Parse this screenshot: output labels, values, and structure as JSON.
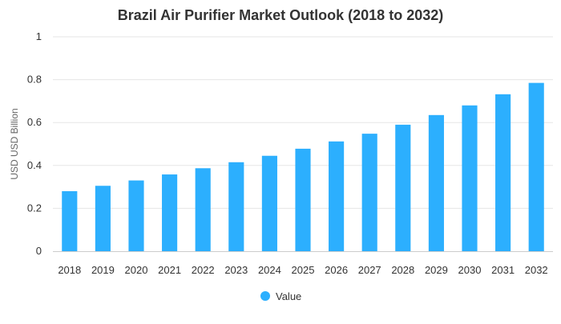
{
  "chart_data": {
    "type": "bar",
    "title": "Brazil Air Purifier Market Outlook (2018 to 2032)",
    "xlabel": "",
    "ylabel": "USD USD Billion",
    "categories": [
      "2018",
      "2019",
      "2020",
      "2021",
      "2022",
      "2023",
      "2024",
      "2025",
      "2026",
      "2027",
      "2028",
      "2029",
      "2030",
      "2031",
      "2032"
    ],
    "series": [
      {
        "name": "Value",
        "values": [
          0.28,
          0.305,
          0.33,
          0.358,
          0.387,
          0.415,
          0.445,
          0.478,
          0.512,
          0.548,
          0.59,
          0.635,
          0.68,
          0.732,
          0.785
        ]
      }
    ],
    "ylim": [
      0,
      1
    ],
    "yticks": [
      "0",
      "0.2",
      "0.4",
      "0.6",
      "0.8",
      "1"
    ],
    "grid": true,
    "legend_position": "bottom",
    "colors": {
      "bar": "#2caffe"
    }
  }
}
